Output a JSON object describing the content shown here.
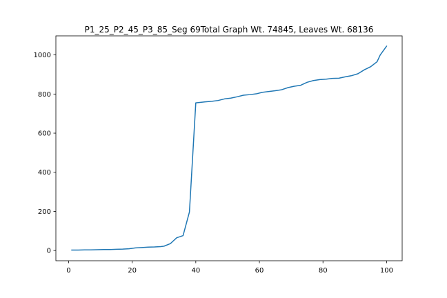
{
  "chart_data": {
    "type": "line",
    "title": "P1_25_P2_45_P3_85_Seg 69Total Graph Wt. 74845, Leaves Wt. 68136",
    "xlabel": "",
    "ylabel": "",
    "xlim": [
      -4.0,
      104.9
    ],
    "ylim": [
      -52.5,
      1097.5
    ],
    "grid": false,
    "x_ticks": [
      0,
      20,
      40,
      60,
      80,
      100
    ],
    "y_ticks": [
      0,
      200,
      400,
      600,
      800,
      1000
    ],
    "x_tick_labels": [
      "0",
      "20",
      "40",
      "60",
      "80",
      "100"
    ],
    "y_tick_labels": [
      "0",
      "200",
      "400",
      "600",
      "800",
      "1000"
    ],
    "line_color": "#1f77b4",
    "series": [
      {
        "x": [
          1,
          3,
          5,
          7,
          9,
          11,
          13,
          15,
          17,
          19,
          21,
          23,
          25,
          27,
          29,
          30,
          32,
          34,
          36,
          38,
          40,
          43,
          45,
          47,
          49,
          51,
          53,
          55,
          57,
          59,
          61,
          63,
          65,
          67,
          69,
          71,
          73,
          75,
          77,
          79,
          81,
          83,
          85,
          87,
          89,
          91,
          93,
          95,
          97,
          98,
          100
        ],
        "y": [
          2,
          2,
          3,
          3,
          4,
          5,
          5,
          6,
          7,
          9,
          13,
          15,
          17,
          18,
          20,
          22,
          35,
          65,
          76,
          197,
          755,
          760,
          763,
          767,
          775,
          779,
          786,
          794,
          797,
          801,
          809,
          813,
          817,
          822,
          833,
          840,
          845,
          860,
          869,
          874,
          876,
          880,
          881,
          888,
          894,
          904,
          924,
          940,
          965,
          1000,
          1045
        ]
      }
    ]
  }
}
